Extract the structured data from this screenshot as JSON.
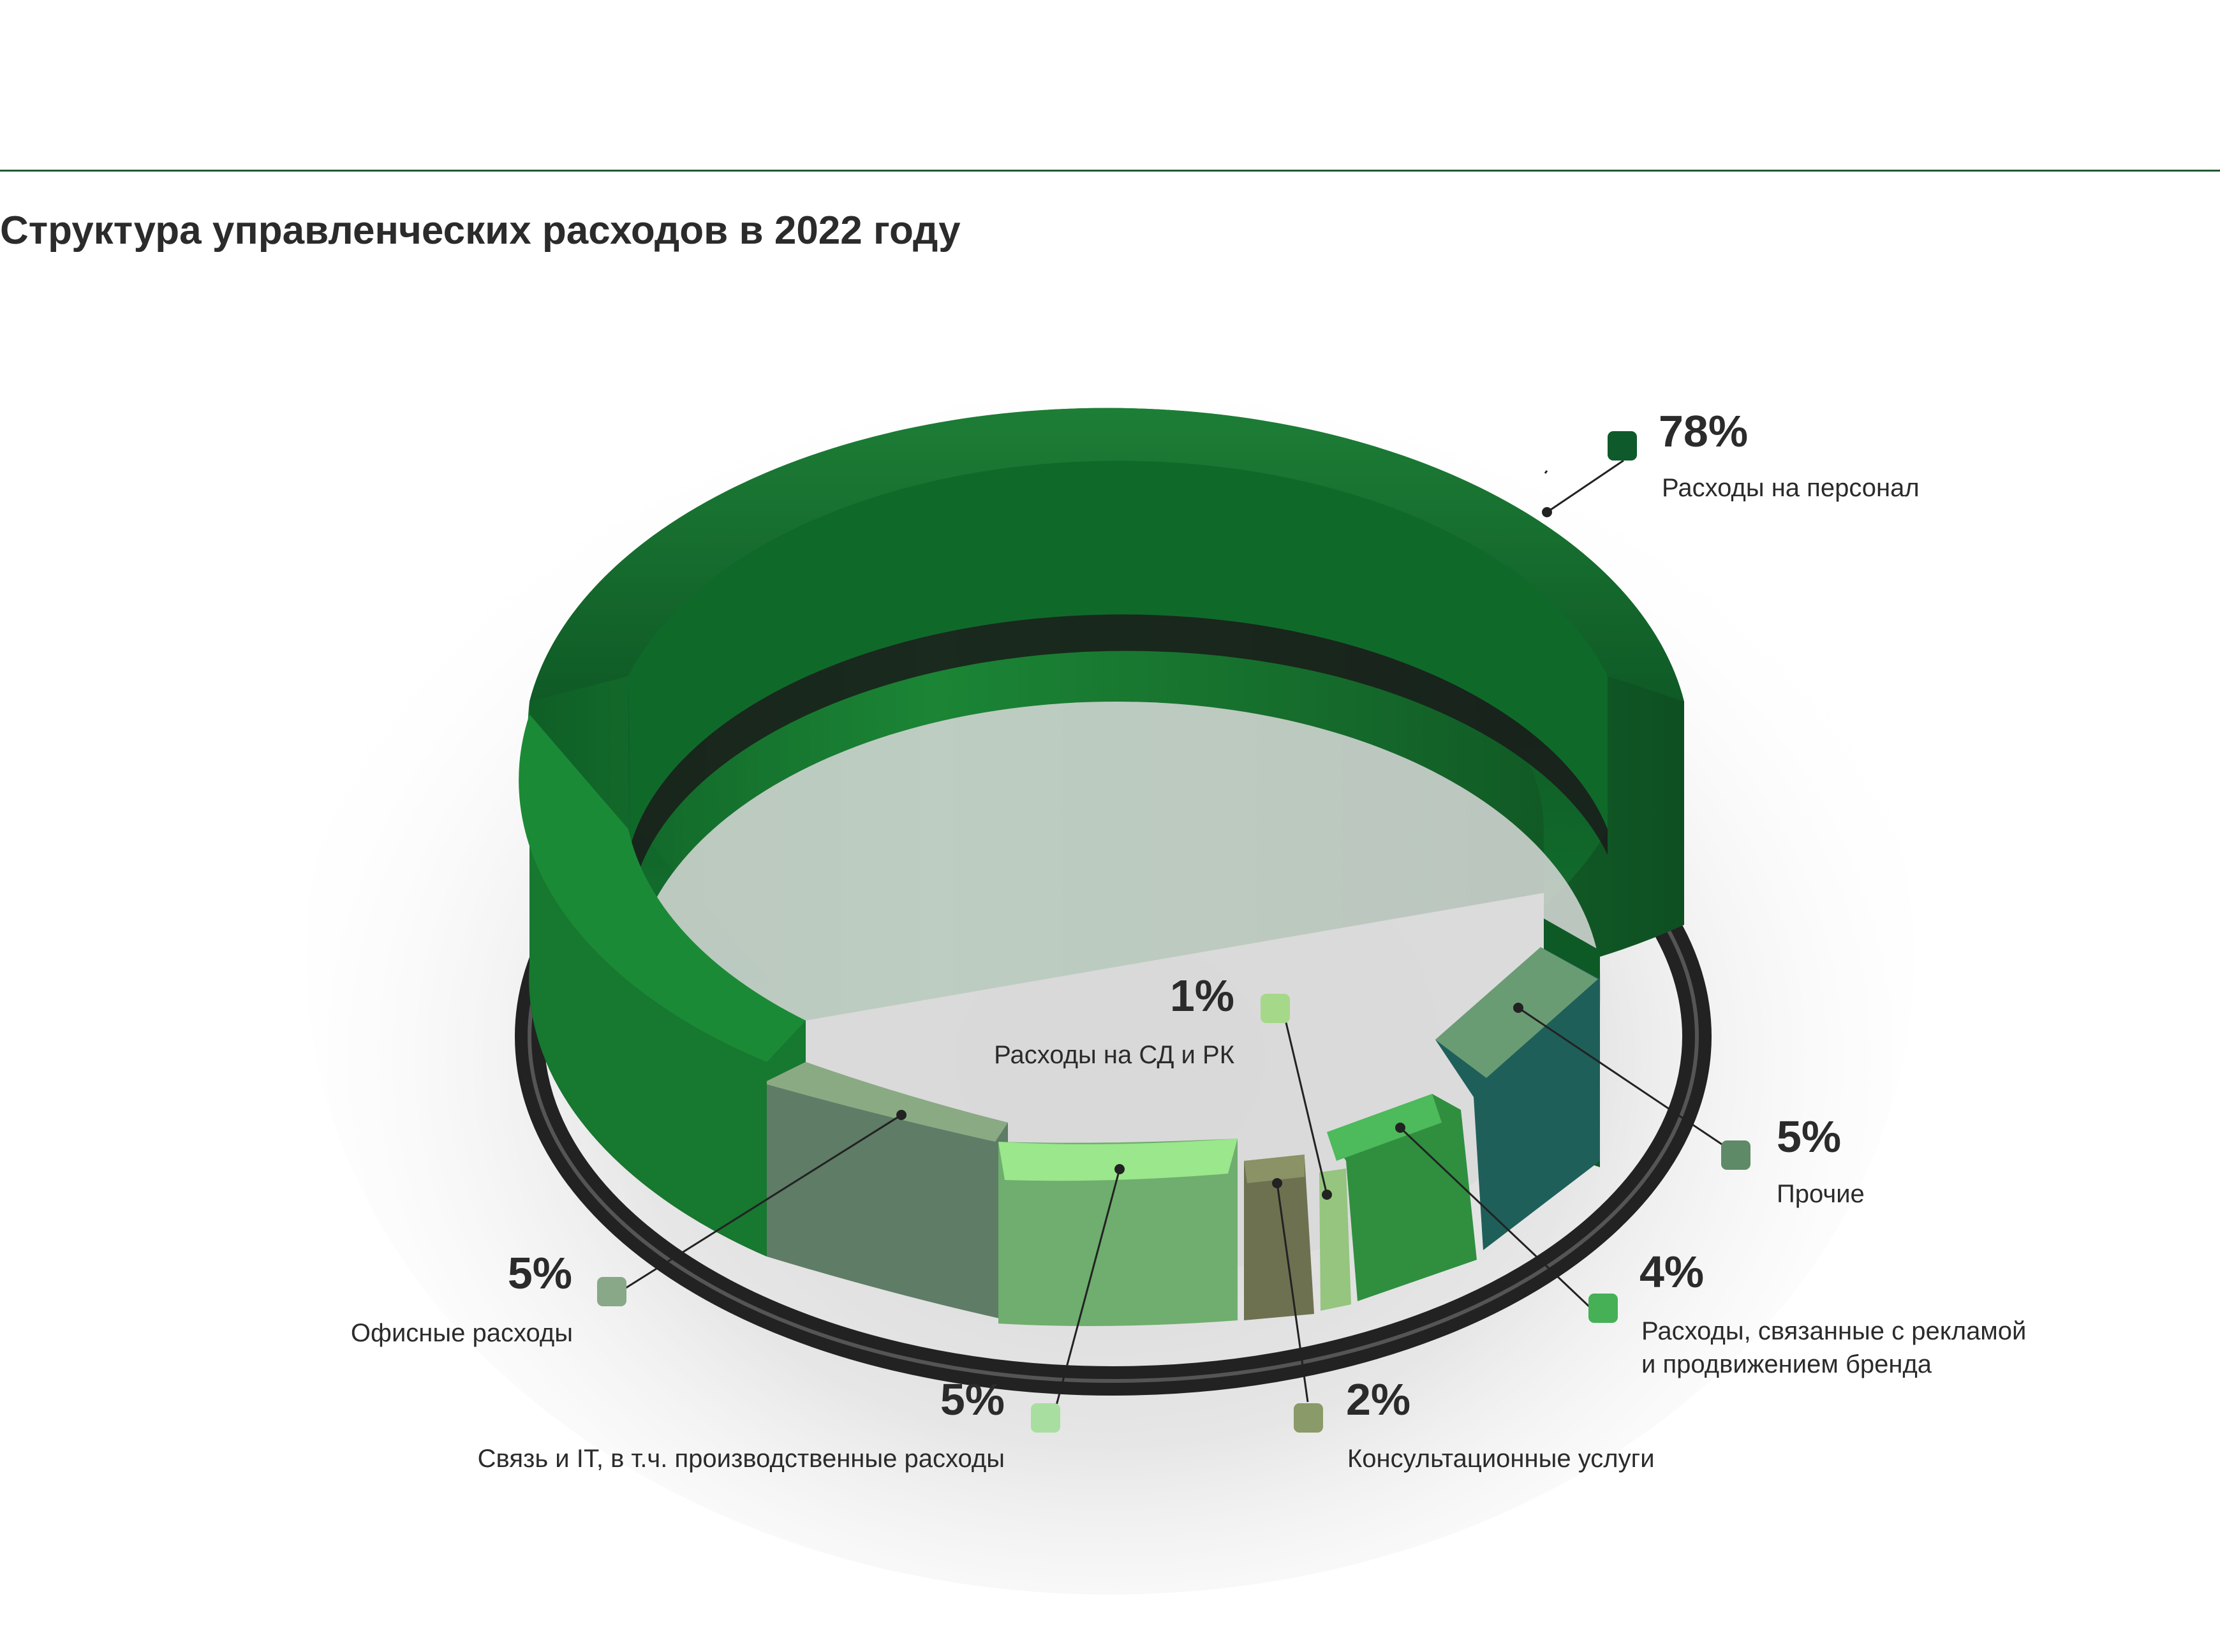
{
  "title": "Структура управленческих расходов в 2022 году",
  "chart_data": {
    "type": "pie",
    "title": "Структура управленческих расходов в 2022 году",
    "unit": "%",
    "slices": [
      {
        "label": "Расходы на персонал",
        "value": 78,
        "value_label": "78%",
        "color": "#16742e",
        "marker_color": "#0f5a2a"
      },
      {
        "label": "Прочие",
        "value": 5,
        "value_label": "5%",
        "color": "#5f8f6c",
        "marker_color": "#5e8a68"
      },
      {
        "label": "Расходы, связанные с рекламой и продвижением бренда",
        "label_lines": [
          "Расходы, связанные с рекламой",
          "и продвижением бренда"
        ],
        "value": 4,
        "value_label": "4%",
        "color": "#3fae52",
        "marker_color": "#45b056"
      },
      {
        "label": "Расходы на СД и РК",
        "value": 1,
        "value_label": "1%",
        "color": "#9fd086",
        "marker_color": "#a6d88a"
      },
      {
        "label": "Консультационные услуги",
        "value": 2,
        "value_label": "2%",
        "color": "#757a4e",
        "marker_color": "#8a9a68"
      },
      {
        "label": "Связь и IT, в т.ч. производственные расходы",
        "value": 5,
        "value_label": "5%",
        "color": "#7fd37a",
        "marker_color": "#a8dfa0"
      },
      {
        "label": "Офисные расходы",
        "value": 5,
        "value_label": "5%",
        "color": "#7c9e7a",
        "marker_color": "#88a888"
      }
    ]
  }
}
